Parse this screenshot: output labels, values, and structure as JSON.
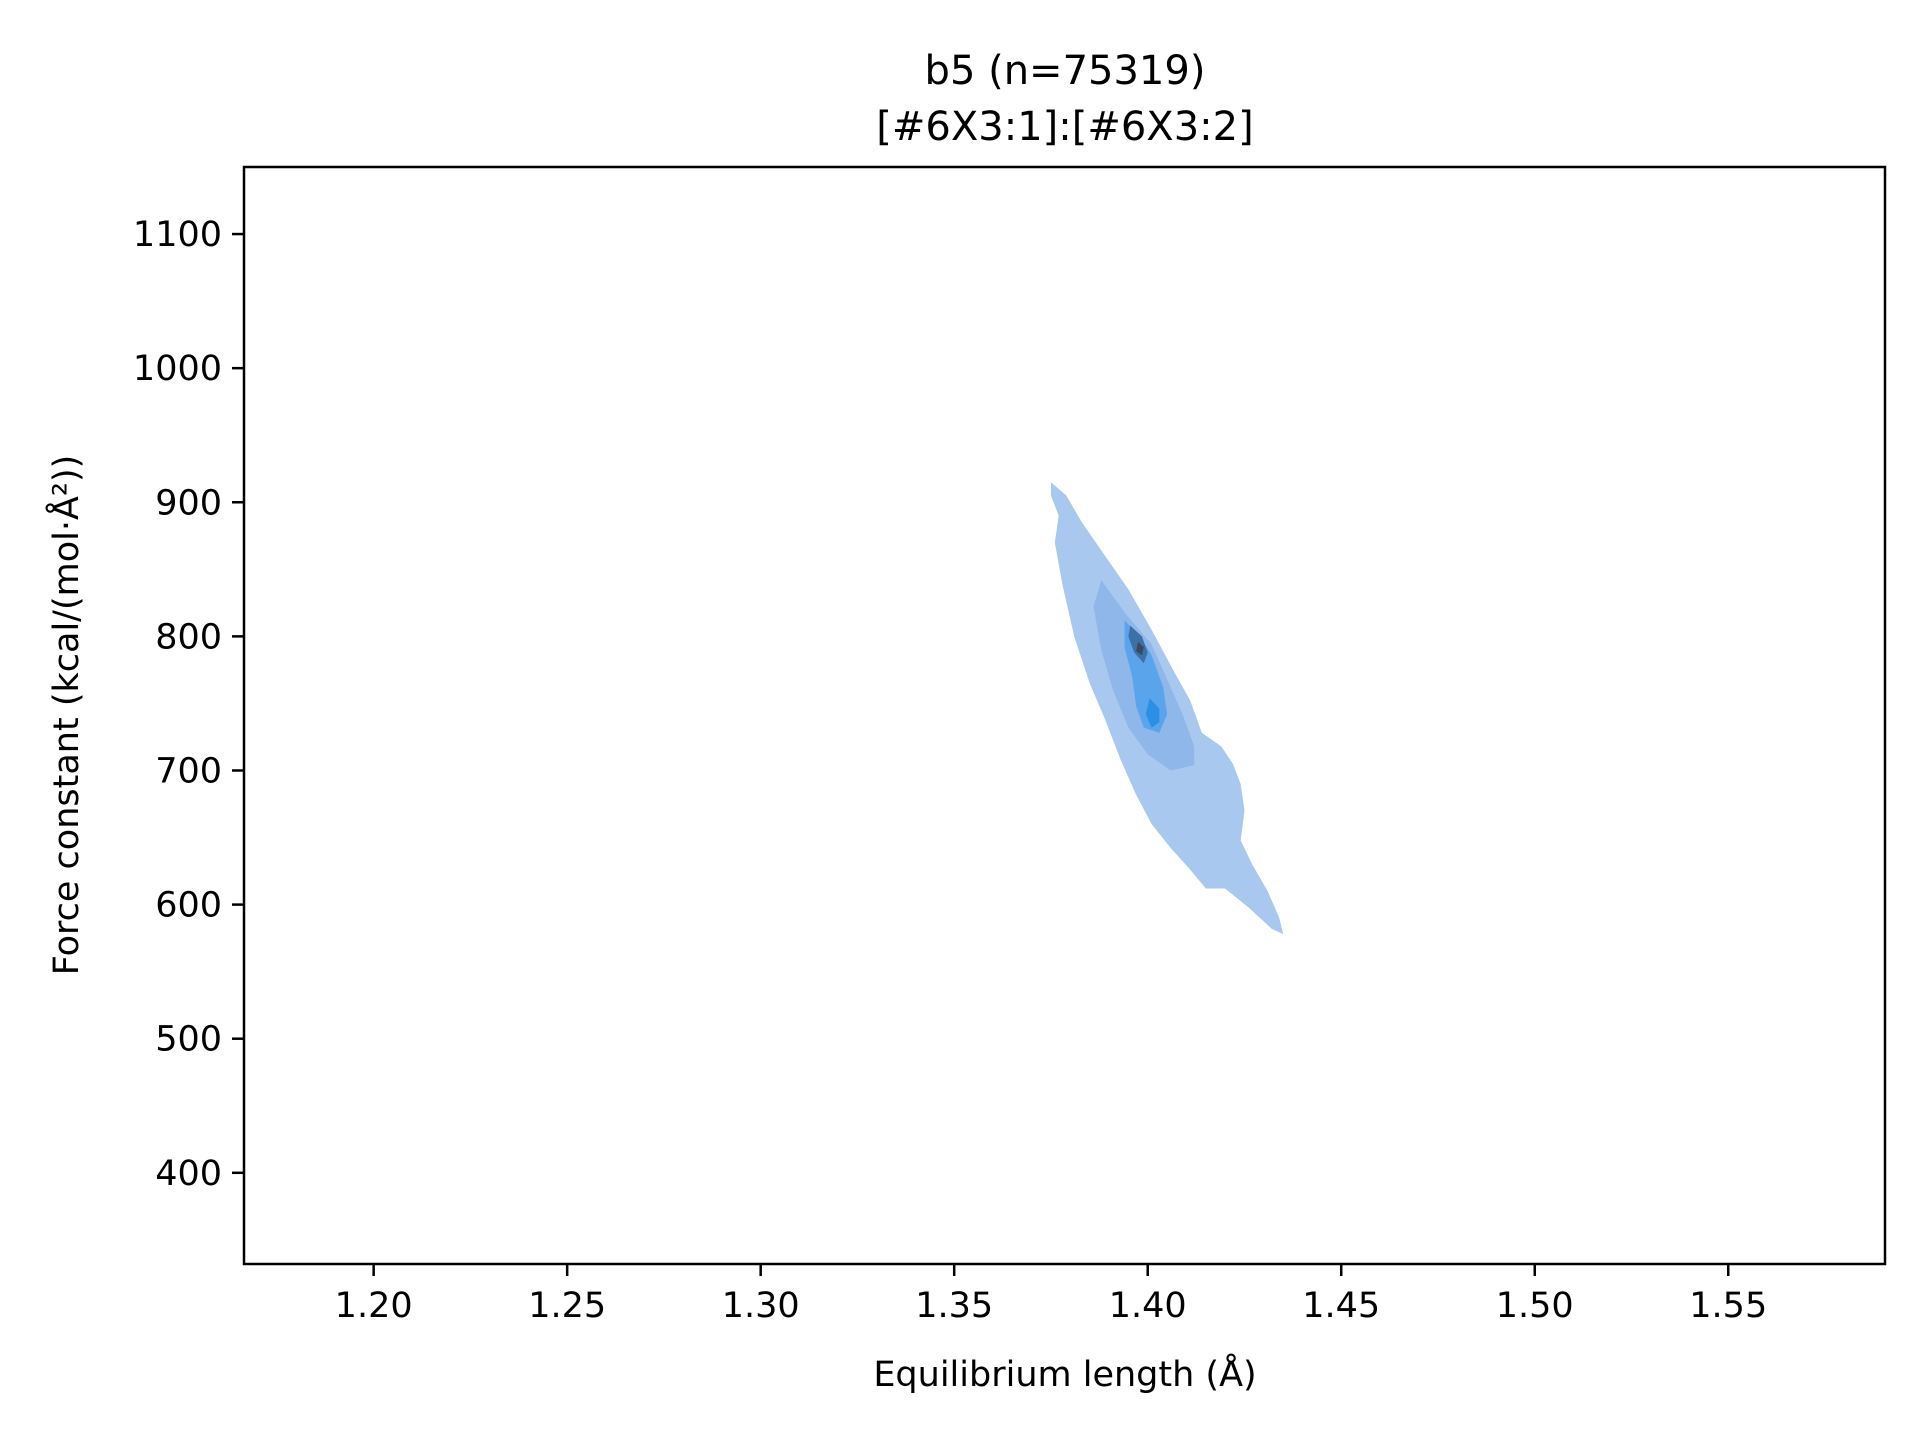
{
  "chart_data": {
    "type": "density",
    "title": "b5 (n=75319)",
    "subtitle": "[#6X3:1]:[#6X3:2]",
    "xlabel": "Equilibrium length (Å)",
    "ylabel": "Force constant (kcal/(mol·Å²))",
    "xlim": [
      1.1665,
      1.5905
    ],
    "ylim": [
      332,
      1150
    ],
    "x_ticks": [
      {
        "value": 1.2,
        "label": "1.20"
      },
      {
        "value": 1.25,
        "label": "1.25"
      },
      {
        "value": 1.3,
        "label": "1.30"
      },
      {
        "value": 1.35,
        "label": "1.35"
      },
      {
        "value": 1.4,
        "label": "1.40"
      },
      {
        "value": 1.45,
        "label": "1.45"
      },
      {
        "value": 1.5,
        "label": "1.50"
      },
      {
        "value": 1.55,
        "label": "1.55"
      }
    ],
    "y_ticks": [
      {
        "value": 400,
        "label": "400"
      },
      {
        "value": 500,
        "label": "500"
      },
      {
        "value": 600,
        "label": "600"
      },
      {
        "value": 700,
        "label": "700"
      },
      {
        "value": 800,
        "label": "800"
      },
      {
        "value": 900,
        "label": "900"
      },
      {
        "value": 1000,
        "label": "1000"
      },
      {
        "value": 1100,
        "label": "1100"
      }
    ],
    "grid": false,
    "density_levels": [
      {
        "name": "outer",
        "color": "#a9c8ef",
        "points": [
          [
            1.375,
            915
          ],
          [
            1.379,
            905
          ],
          [
            1.383,
            885
          ],
          [
            1.389,
            860
          ],
          [
            1.395,
            835
          ],
          [
            1.401,
            805
          ],
          [
            1.406,
            778
          ],
          [
            1.411,
            752
          ],
          [
            1.414,
            728
          ],
          [
            1.419,
            718
          ],
          [
            1.422,
            705
          ],
          [
            1.424,
            690
          ],
          [
            1.425,
            670
          ],
          [
            1.424,
            648
          ],
          [
            1.427,
            630
          ],
          [
            1.431,
            610
          ],
          [
            1.434,
            590
          ],
          [
            1.435,
            578
          ],
          [
            1.432,
            582
          ],
          [
            1.426,
            598
          ],
          [
            1.42,
            612
          ],
          [
            1.415,
            612
          ],
          [
            1.411,
            626
          ],
          [
            1.406,
            642
          ],
          [
            1.401,
            660
          ],
          [
            1.397,
            682
          ],
          [
            1.393,
            708
          ],
          [
            1.389,
            738
          ],
          [
            1.385,
            765
          ],
          [
            1.381,
            800
          ],
          [
            1.378,
            838
          ],
          [
            1.376,
            870
          ],
          [
            1.377,
            890
          ],
          [
            1.375,
            905
          ]
        ]
      },
      {
        "name": "mid",
        "color": "#8fb7ea",
        "points": [
          [
            1.388,
            842
          ],
          [
            1.394,
            818
          ],
          [
            1.401,
            794
          ],
          [
            1.405,
            768
          ],
          [
            1.409,
            742
          ],
          [
            1.412,
            718
          ],
          [
            1.412,
            704
          ],
          [
            1.406,
            700
          ],
          [
            1.4,
            712
          ],
          [
            1.395,
            732
          ],
          [
            1.391,
            760
          ],
          [
            1.388,
            790
          ],
          [
            1.386,
            822
          ]
        ]
      },
      {
        "name": "inner",
        "color": "#5aa4ec",
        "points": [
          [
            1.394,
            812
          ],
          [
            1.398,
            800
          ],
          [
            1.401,
            786
          ],
          [
            1.404,
            762
          ],
          [
            1.405,
            742
          ],
          [
            1.403,
            728
          ],
          [
            1.399,
            732
          ],
          [
            1.397,
            748
          ],
          [
            1.396,
            770
          ],
          [
            1.394,
            792
          ]
        ]
      },
      {
        "name": "core-upper",
        "color": "#3d6fa8",
        "points": [
          [
            1.3955,
            808
          ],
          [
            1.3985,
            800
          ],
          [
            1.4,
            788
          ],
          [
            1.399,
            780
          ],
          [
            1.3965,
            788
          ],
          [
            1.395,
            800
          ]
        ]
      },
      {
        "name": "core-lower",
        "color": "#2b8fe6",
        "points": [
          [
            1.4005,
            754
          ],
          [
            1.403,
            746
          ],
          [
            1.403,
            736
          ],
          [
            1.401,
            732
          ],
          [
            1.3995,
            742
          ]
        ]
      },
      {
        "name": "peak",
        "color": "#3c4a5a",
        "points": [
          [
            1.3975,
            796
          ],
          [
            1.399,
            792
          ],
          [
            1.3985,
            786
          ],
          [
            1.397,
            789
          ]
        ]
      }
    ]
  }
}
